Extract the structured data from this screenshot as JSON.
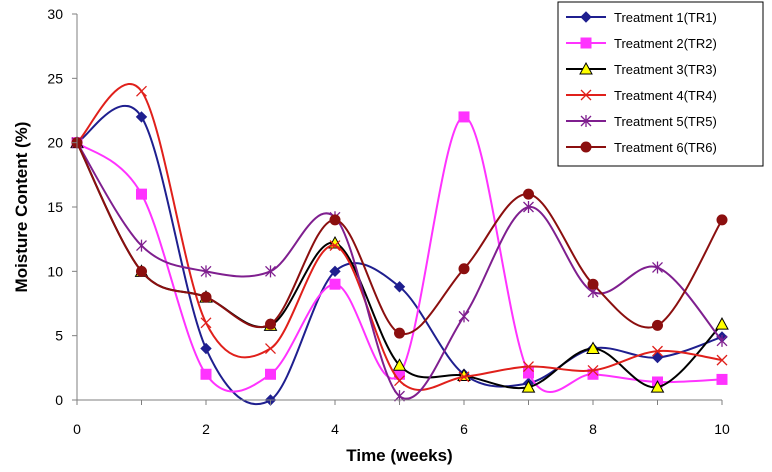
{
  "chart_data": {
    "type": "line",
    "title": "",
    "xlabel": "Time (weeks)",
    "ylabel": "Moisture Content (%)",
    "xlim": [
      0,
      10
    ],
    "ylim": [
      0,
      30
    ],
    "x_ticks": [
      0,
      2,
      4,
      6,
      8,
      10
    ],
    "y_ticks": [
      0,
      5,
      10,
      15,
      20,
      25,
      30
    ],
    "grid": false,
    "smooth": true,
    "legend_position": "top-right",
    "x": [
      0,
      1,
      2,
      3,
      4,
      5,
      6,
      7,
      8,
      9,
      10
    ],
    "series": [
      {
        "name": "Treatment 1(TR1)",
        "color": "#1f1f8f",
        "marker": "diamond",
        "values": [
          20,
          22,
          4,
          0,
          10,
          8.8,
          2,
          1.3,
          4,
          3.3,
          4.9
        ]
      },
      {
        "name": "Treatment 2(TR2)",
        "color": "#ff33ff",
        "marker": "square",
        "values": [
          20,
          16,
          2,
          2,
          9,
          2,
          22,
          2.1,
          2,
          1.4,
          1.6
        ]
      },
      {
        "name": "Treatment 3(TR3)",
        "color": "#000000",
        "marker": "triangle",
        "values": [
          20,
          10,
          8,
          5.8,
          12.2,
          2.7,
          1.9,
          1,
          4,
          1,
          5.9
        ]
      },
      {
        "name": "Treatment 4(TR4)",
        "color": "#e0201b",
        "marker": "x",
        "values": [
          20,
          24,
          6,
          4,
          12,
          1.5,
          1.8,
          2.6,
          2.3,
          3.8,
          3.1
        ]
      },
      {
        "name": "Treatment 5(TR5)",
        "color": "#7f1f8f",
        "marker": "star",
        "values": [
          20,
          12,
          10,
          10,
          14.2,
          0.3,
          6.5,
          15,
          8.4,
          10.3,
          4.6
        ]
      },
      {
        "name": "Treatment 6(TR6)",
        "color": "#8b0f0f",
        "marker": "circle",
        "values": [
          20,
          10,
          8,
          5.9,
          14,
          5.2,
          10.2,
          16,
          9,
          5.8,
          14
        ]
      }
    ]
  }
}
